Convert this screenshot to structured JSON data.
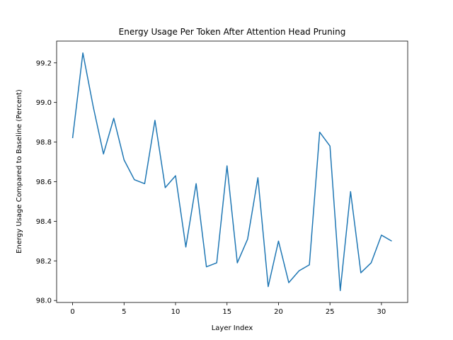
{
  "chart_data": {
    "type": "line",
    "title": "Energy Usage Per Token After Attention Head Pruning",
    "xlabel": "Layer Index",
    "ylabel": "Energy Usage Compared to Baseline (Percent)",
    "xlim": [
      -1.55,
      32.55
    ],
    "ylim": [
      97.99,
      99.31
    ],
    "xticks": [
      0,
      5,
      10,
      15,
      20,
      25,
      30
    ],
    "xtick_labels": [
      "0",
      "5",
      "10",
      "15",
      "20",
      "25",
      "30"
    ],
    "yticks": [
      98.0,
      98.2,
      98.4,
      98.6,
      98.8,
      99.0,
      99.2
    ],
    "ytick_labels": [
      "98.0",
      "98.2",
      "98.4",
      "98.6",
      "98.8",
      "99.0",
      "99.2"
    ],
    "grid": false,
    "series": [
      {
        "color": "#1f77b4",
        "x": [
          0,
          1,
          2,
          3,
          4,
          5,
          6,
          7,
          8,
          9,
          10,
          11,
          12,
          13,
          14,
          15,
          16,
          17,
          18,
          19,
          20,
          21,
          22,
          23,
          24,
          25,
          26,
          27,
          28,
          29,
          30,
          31
        ],
        "y": [
          98.82,
          99.25,
          98.98,
          98.74,
          98.92,
          98.71,
          98.61,
          98.59,
          98.91,
          98.57,
          98.63,
          98.27,
          98.59,
          98.17,
          98.19,
          98.68,
          98.19,
          98.31,
          98.62,
          98.07,
          98.3,
          98.09,
          98.15,
          98.18,
          98.85,
          98.78,
          98.05,
          98.55,
          98.14,
          98.19,
          98.33,
          98.3
        ]
      }
    ]
  }
}
